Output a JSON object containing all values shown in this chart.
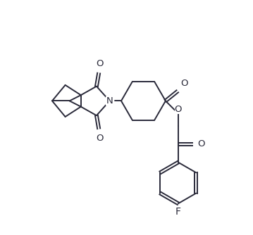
{
  "background_color": "#ffffff",
  "line_color": "#2a2a3a",
  "text_color": "#2a2a3a",
  "line_width": 1.4,
  "font_size": 9.5,
  "figsize": [
    3.59,
    3.34
  ],
  "dpi": 100,
  "xlim": [
    0,
    10
  ],
  "ylim": [
    0,
    9.3
  ]
}
